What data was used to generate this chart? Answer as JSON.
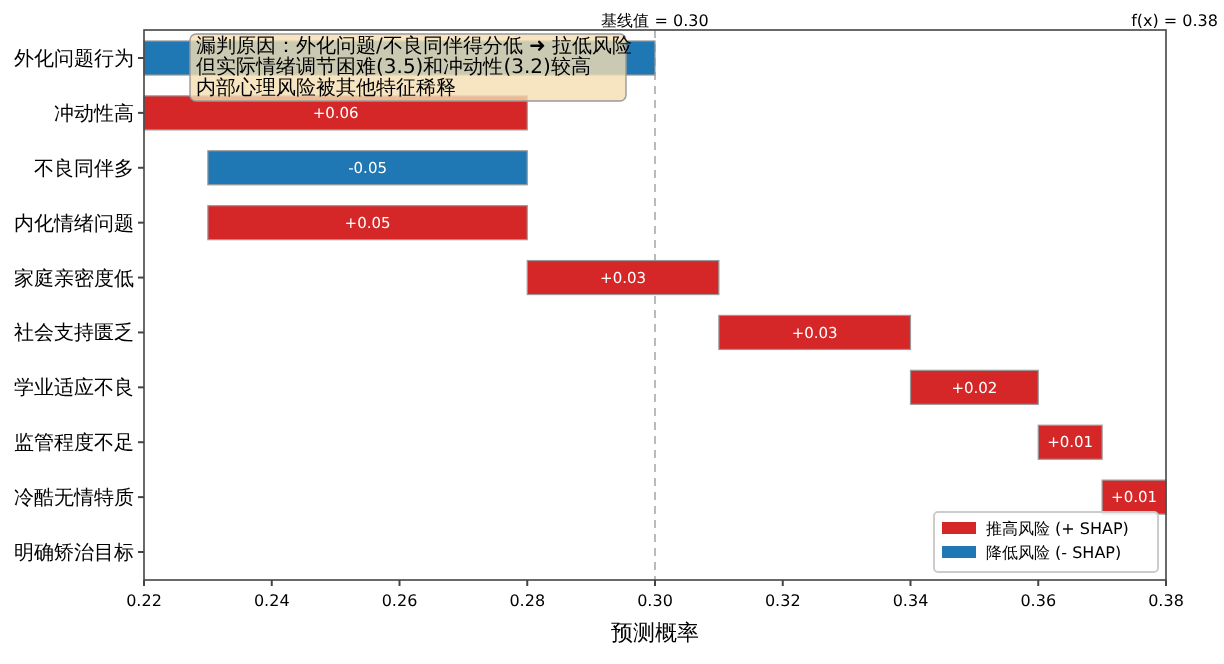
{
  "chart_data": {
    "type": "bar",
    "orientation": "horizontal",
    "xlabel": "预测概率",
    "categories": [
      "外化问题行为",
      "冲动性高",
      "不良同伴多",
      "内化情绪问题",
      "家庭亲密度低",
      "社会支持匮乏",
      "学业适应不良",
      "监管程度不足",
      "冷酷无情特质",
      "明确矫治目标"
    ],
    "series": [
      {
        "name": "推高风险 (+ SHAP)",
        "color": "#d62728",
        "base": [
          null,
          0.22,
          null,
          0.23,
          0.28,
          0.31,
          0.34,
          0.36,
          0.37,
          null
        ],
        "values": [
          null,
          0.06,
          null,
          0.05,
          0.03,
          0.03,
          0.02,
          0.01,
          0.01,
          null
        ],
        "value_labels": [
          null,
          "+0.06",
          null,
          "+0.05",
          "+0.03",
          "+0.03",
          "+0.02",
          "+0.01",
          "+0.01",
          null
        ]
      },
      {
        "name": "降低风险 (- SHAP)",
        "color": "#1f77b4",
        "base": [
          0.3,
          null,
          0.28,
          null,
          null,
          null,
          null,
          null,
          null,
          null
        ],
        "values": [
          -0.08,
          null,
          -0.05,
          null,
          null,
          null,
          null,
          null,
          null,
          null
        ],
        "value_labels": [
          null,
          null,
          "-0.05",
          null,
          null,
          null,
          null,
          null,
          null,
          null
        ]
      }
    ],
    "xlim": [
      0.22,
      0.38
    ],
    "xticks": [
      {
        "value": 0.22,
        "label": "0.22"
      },
      {
        "value": 0.24,
        "label": "0.24"
      },
      {
        "value": 0.26,
        "label": "0.26"
      },
      {
        "value": 0.28,
        "label": "0.28"
      },
      {
        "value": 0.3,
        "label": "0.30"
      },
      {
        "value": 0.32,
        "label": "0.32"
      },
      {
        "value": 0.34,
        "label": "0.34"
      },
      {
        "value": 0.36,
        "label": "0.36"
      },
      {
        "value": 0.38,
        "label": "0.38"
      }
    ],
    "ref_lines": [
      {
        "axis": "x",
        "value": 0.3,
        "label": "基线值 = 0.30",
        "color": "#aaaaaa",
        "line_style": "dashed"
      }
    ],
    "annotations": [
      "f(x) = 0.38",
      "漏判原因：外化问题/不良同伴得分低 ➜ 拉低风险",
      "但实际情绪调节困难(3.5)和冲动性(3.2)较高",
      "内部心理风险被其他特征稀释"
    ],
    "legend": "bottom right"
  }
}
